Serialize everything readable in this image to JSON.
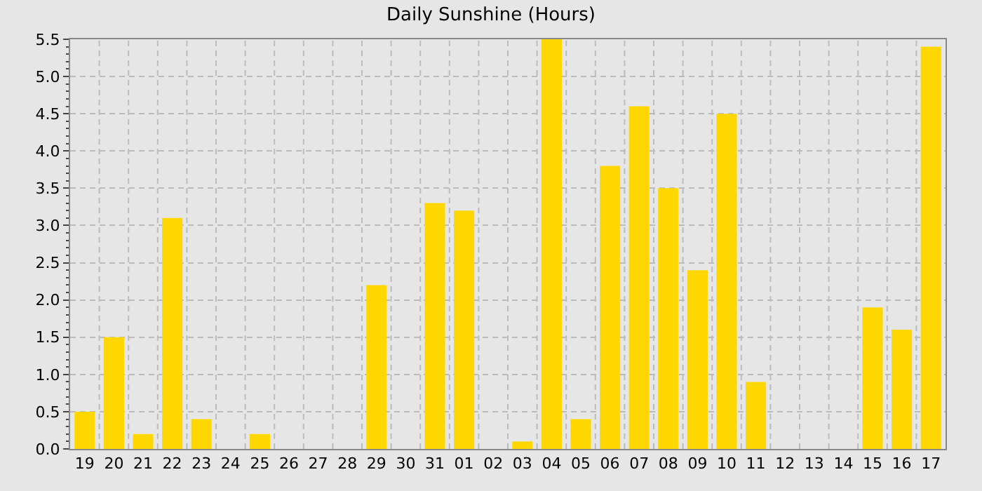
{
  "chart_data": {
    "type": "bar",
    "title": "Daily Sunshine (Hours)",
    "categories": [
      "19",
      "20",
      "21",
      "22",
      "23",
      "24",
      "25",
      "26",
      "27",
      "28",
      "29",
      "30",
      "31",
      "01",
      "02",
      "03",
      "04",
      "05",
      "06",
      "07",
      "08",
      "09",
      "10",
      "11",
      "12",
      "13",
      "14",
      "15",
      "16",
      "17"
    ],
    "values": [
      0.5,
      1.5,
      0.2,
      3.1,
      0.4,
      0,
      0.2,
      0,
      0,
      0,
      2.2,
      0,
      3.3,
      3.2,
      0,
      0.1,
      5.5,
      0.4,
      3.8,
      4.6,
      3.5,
      2.4,
      4.5,
      0.9,
      0,
      0,
      0,
      1.9,
      1.6,
      5.4
    ],
    "color": "#ffd700",
    "ylim": [
      0,
      5.5
    ],
    "yticks": [
      {
        "value": 0,
        "label": "0.0"
      },
      {
        "value": 0.5,
        "label": "0.5"
      },
      {
        "value": 1,
        "label": "1.0"
      },
      {
        "value": 1.5,
        "label": "1.5"
      },
      {
        "value": 2,
        "label": "2.0"
      },
      {
        "value": 2.5,
        "label": "2.5"
      },
      {
        "value": 3,
        "label": "3.0"
      },
      {
        "value": 3.5,
        "label": "3.5"
      },
      {
        "value": 4,
        "label": "4.0"
      },
      {
        "value": 4.5,
        "label": "4.5"
      },
      {
        "value": 5,
        "label": "5.0"
      },
      {
        "value": 5.5,
        "label": "5.5"
      }
    ],
    "grid": true
  }
}
